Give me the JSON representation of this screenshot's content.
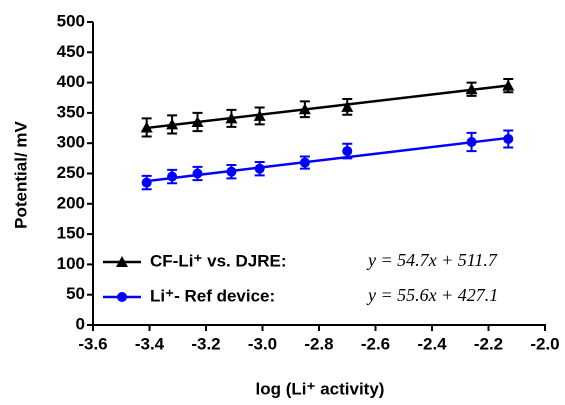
{
  "chart_data": {
    "type": "scatter",
    "xlabel": "log (Li⁺ activity)",
    "ylabel": "Potential/ mV",
    "xlim": [
      -3.6,
      -2.0
    ],
    "xticks": [
      -3.6,
      -3.4,
      -3.2,
      {
        "value": -3,
        "label": "-3.0"
      },
      -2.8,
      -2.6,
      -2.4,
      -2.2,
      {
        "value": -2,
        "label": "-2.0"
      }
    ],
    "ylim": [
      0,
      500
    ],
    "yticks": [
      0,
      50,
      100,
      150,
      200,
      250,
      300,
      350,
      400,
      450,
      500
    ],
    "x": [
      -3.41,
      -3.32,
      -3.23,
      -3.11,
      -3.01,
      -2.85,
      -2.7,
      -2.26,
      -2.13
    ],
    "series": [
      {
        "name": "CF-Li⁺ vs. DJRE:",
        "color": "#000000",
        "marker": "triangle",
        "values": [
          326,
          331,
          335,
          341,
          345,
          356,
          360,
          389,
          395
        ],
        "errors": [
          15,
          15,
          15,
          14,
          14,
          13,
          13,
          11,
          11
        ],
        "fit": {
          "slope": 54.7,
          "intercept": 511.7
        },
        "equation": "y = 54.7x + 511.7"
      },
      {
        "name": "Li⁺- Ref device:",
        "color": "#0000ff",
        "marker": "circle",
        "values": [
          235,
          245,
          250,
          253,
          258,
          268,
          287,
          302,
          307
        ],
        "errors": [
          11,
          11,
          11,
          11,
          11,
          10,
          12,
          15,
          14
        ],
        "fit": {
          "slope": 55.6,
          "intercept": 427.1
        },
        "equation": "y = 55.6x + 427.1"
      }
    ]
  }
}
